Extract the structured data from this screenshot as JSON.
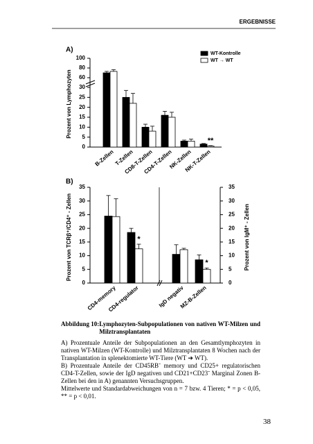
{
  "header": {
    "title": "ERGEBNISSE"
  },
  "chart_data": [
    {
      "type": "bar",
      "panel_label": "A)",
      "y_label": "Prozent von Lymphozyten",
      "categories": [
        "B-Zellen",
        "T-Zellen",
        "CD8-T-Zellen",
        "CD4-T-Zellen",
        "NK-Zellen",
        "NK-T-Zellen"
      ],
      "series": [
        {
          "name": "WT-Kontrolle",
          "color": "#000000",
          "values": [
            70,
            25,
            10,
            16,
            3,
            1.5
          ],
          "errors": [
            3,
            3.5,
            1.5,
            2,
            0.5,
            0.3
          ]
        },
        {
          "name": "WT → WT",
          "color": "#ffffff",
          "values": [
            73,
            22,
            8,
            15,
            3,
            0.5
          ],
          "errors": [
            3.5,
            5,
            2.5,
            2.5,
            1,
            0.2
          ],
          "significance": [
            null,
            null,
            null,
            null,
            null,
            "**"
          ]
        }
      ],
      "ylim": [
        0,
        100
      ],
      "axis_break": [
        30,
        60
      ],
      "yticks": [
        0,
        5,
        10,
        15,
        20,
        25,
        30,
        60,
        80,
        100
      ],
      "legend": "upper right"
    },
    {
      "type": "bar",
      "panel_label": "B)",
      "y_label": "Prozent von TCRβ⁺/CD4⁺ - Zellen",
      "y2_label": "Prozent von IgM⁺ - Zellen",
      "categories": [
        "CD4-memory",
        "CD4-regulator",
        "IgD negativ",
        "MZ-B-Zellen"
      ],
      "series": [
        {
          "name": "WT-Kontrolle",
          "color": "#000000",
          "values": [
            24.5,
            18.5,
            10.5,
            8.5
          ],
          "errors": [
            7.5,
            1.5,
            3.5,
            1.8
          ]
        },
        {
          "name": "WT → WT",
          "color": "#ffffff",
          "values": [
            24.3,
            12.5,
            12.2,
            5
          ],
          "errors": [
            6.5,
            1.7,
            0.5,
            0.5
          ],
          "significance": [
            null,
            "*",
            null,
            "*"
          ]
        }
      ],
      "ylim": [
        0,
        35
      ],
      "yticks": [
        0,
        5,
        10,
        15,
        20,
        25,
        30,
        35
      ],
      "y2lim": [
        0,
        35
      ],
      "y2ticks": [
        0,
        5,
        10,
        15,
        20,
        25,
        30,
        35
      ]
    }
  ],
  "caption": {
    "label": "Abbildung 10:",
    "title": "Lymphozyten-Subpopulationen von nativen WT-Milzen und Milztransplantaten",
    "paragraphs": [
      "A) Prozentuale Anteile der Subpopulationen an den Gesamtlymphozyten in nativen WT-Milzen (WT-Kontrolle) und Milztransplantaten 8 Wochen nach der Transplantation in splenektomierte WT-Tiere (WT ➔ WT).",
      "B) Prozentuale Anteile der CD45RBˉ memory und CD25+ regulatorischen CD4-T-Zellen, sowie der IgD negativen und CD21+CD23ˉ Marginal Zonen B-Zellen bei den in A) genannten Versuchsgruppen.",
      "Mittelwerte und Standardabweichungen von n = 7 bzw. 4 Tieren; * = p < 0,05, ** = p < 0,01."
    ]
  },
  "page_number": "38"
}
